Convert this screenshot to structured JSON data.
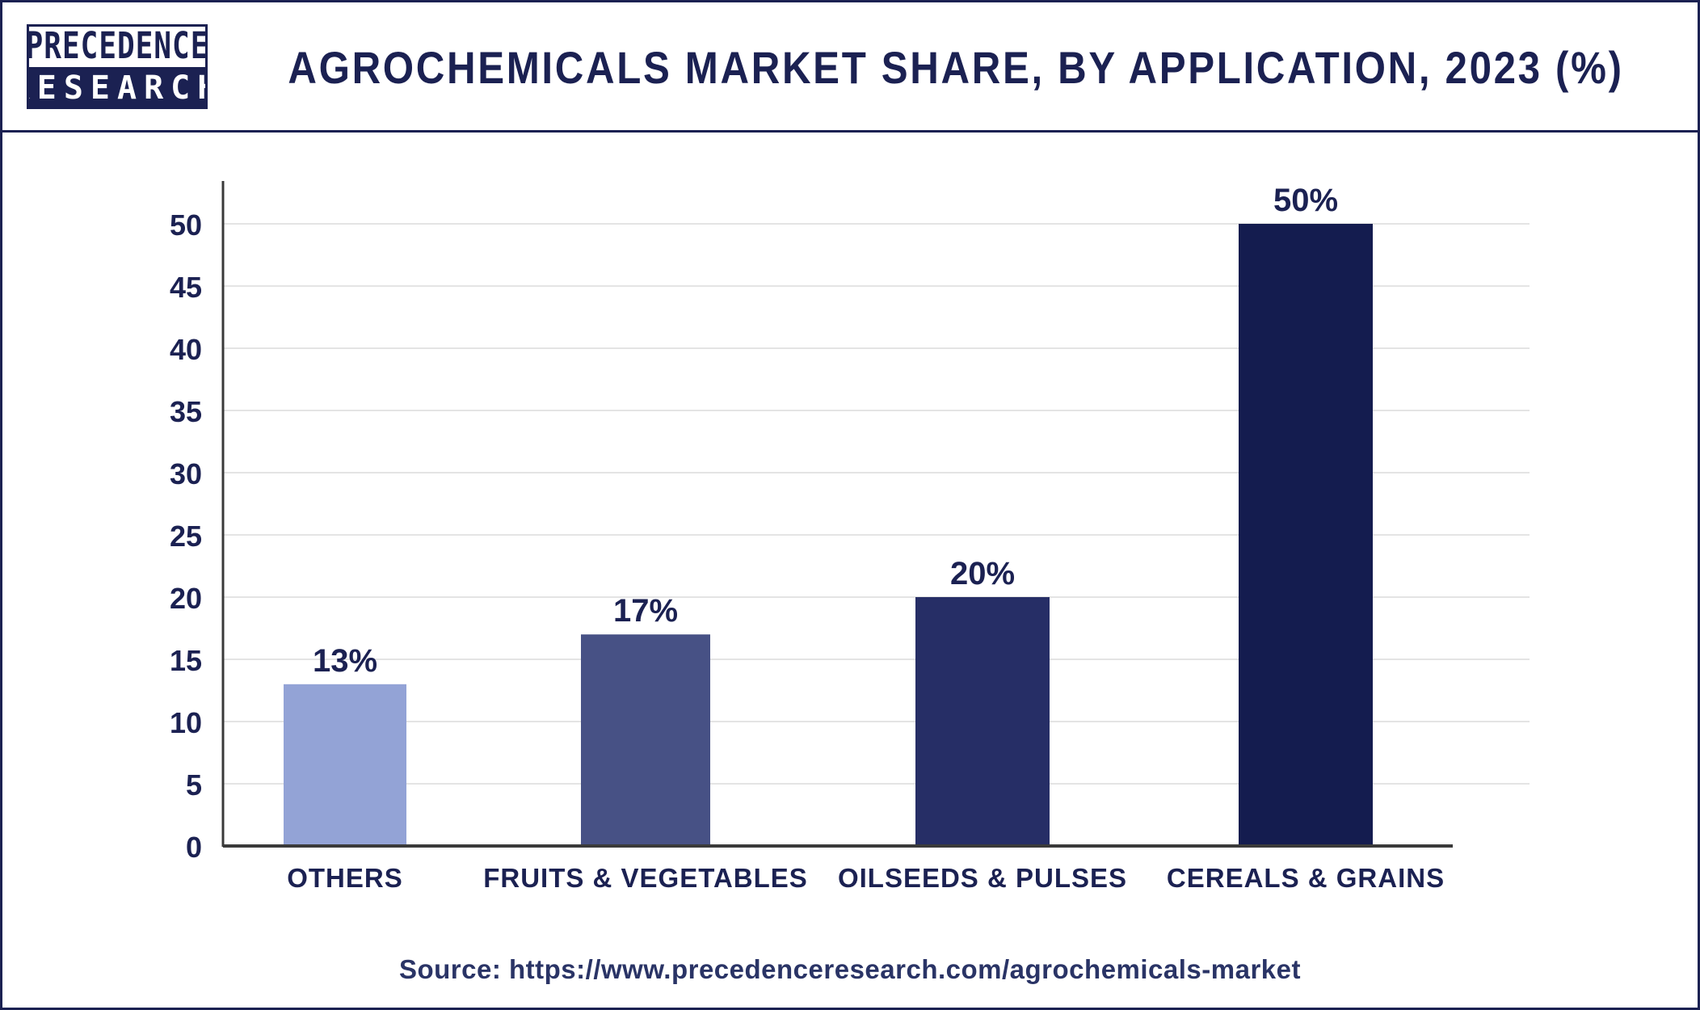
{
  "logo": {
    "line1": "PRECEDENCE",
    "line2": "RESEARCH"
  },
  "header": {
    "title": "AGROCHEMICALS MARKET SHARE, BY APPLICATION, 2023 (%)"
  },
  "footer": {
    "source": "Source: https://www.precedenceresearch.com/agrochemicals-market"
  },
  "colors": {
    "brand_navy": "#1b2152",
    "grid": "#e4e4e4",
    "axis": "#3a3a3a"
  },
  "chart_data": {
    "type": "bar",
    "categories": [
      "OTHERS",
      "FRUITS & VEGETABLES",
      "OILSEEDS & PULSES",
      "CEREALS & GRAINS"
    ],
    "values": [
      13,
      17,
      20,
      50
    ],
    "value_labels": [
      "13%",
      "17%",
      "20%",
      "50%"
    ],
    "bar_colors": [
      "#93a3d6",
      "#475185",
      "#262e66",
      "#141c4f"
    ],
    "title": "AGROCHEMICALS MARKET SHARE, BY APPLICATION, 2023 (%)",
    "xlabel": "",
    "ylabel": "",
    "ylim": [
      0,
      50
    ],
    "yticks": [
      0,
      5,
      10,
      15,
      20,
      25,
      30,
      35,
      40,
      45,
      50
    ],
    "grid": true,
    "legend": "none"
  }
}
